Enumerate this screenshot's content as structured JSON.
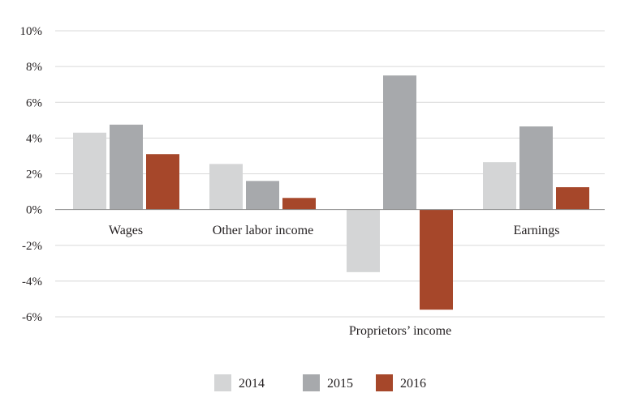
{
  "chart_data": {
    "type": "bar",
    "categories": [
      "Wages",
      "Other labor income",
      "Proprietors’ income",
      "Earnings"
    ],
    "series": [
      {
        "name": "2014",
        "color": "#d4d5d6",
        "values": [
          4.3,
          2.55,
          -3.5,
          2.65
        ]
      },
      {
        "name": "2015",
        "color": "#a7a9ac",
        "values": [
          4.75,
          1.6,
          7.5,
          4.65
        ]
      },
      {
        "name": "2016",
        "color": "#a6472a",
        "values": [
          3.1,
          0.65,
          -5.6,
          1.25
        ]
      }
    ],
    "ylim": [
      -6,
      10
    ],
    "y_ticks": [
      10,
      8,
      6,
      4,
      2,
      0,
      -2,
      -4,
      -6
    ],
    "y_tick_labels": [
      "10%",
      "8%",
      "6%",
      "4%",
      "2%",
      "0%",
      "-2%",
      "-4%",
      "-6%"
    ],
    "grid": true,
    "legend_position": "bottom-center",
    "title": "",
    "xlabel": "",
    "ylabel": ""
  }
}
